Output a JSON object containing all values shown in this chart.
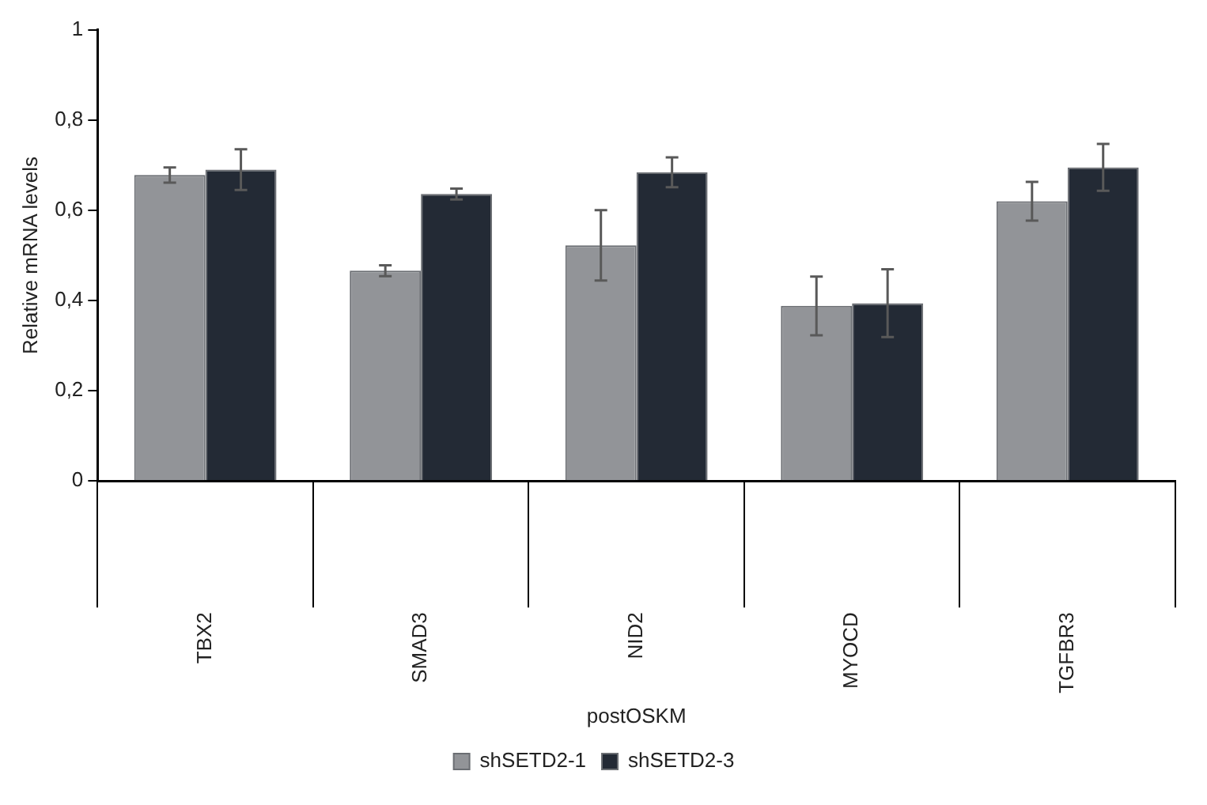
{
  "chart_data": {
    "type": "bar",
    "xlabel": "postOSKM",
    "ylabel": "Relative mRNA levels",
    "categories": [
      "TBX2",
      "SMAD3",
      "NID2",
      "MYOCD",
      "TGFBR3"
    ],
    "series": [
      {
        "name": "shSETD2-1",
        "color": "#929498",
        "values": [
          0.678,
          0.466,
          0.522,
          0.388,
          0.62
        ],
        "errors": [
          0.017,
          0.012,
          0.078,
          0.065,
          0.043
        ]
      },
      {
        "name": "shSETD2-3",
        "color": "#232a35",
        "values": [
          0.69,
          0.636,
          0.684,
          0.394,
          0.695
        ],
        "errors": [
          0.045,
          0.012,
          0.033,
          0.075,
          0.052
        ]
      }
    ],
    "ylim": [
      0,
      1
    ],
    "yticks": [
      0,
      {
        "value": 0.2,
        "label": "0,2"
      },
      {
        "value": 0.4,
        "label": "0,4"
      },
      {
        "value": 0.6,
        "label": "0,6"
      },
      {
        "value": 0.8,
        "label": "0,8"
      },
      1
    ],
    "grid": false,
    "legend": "bottom"
  }
}
